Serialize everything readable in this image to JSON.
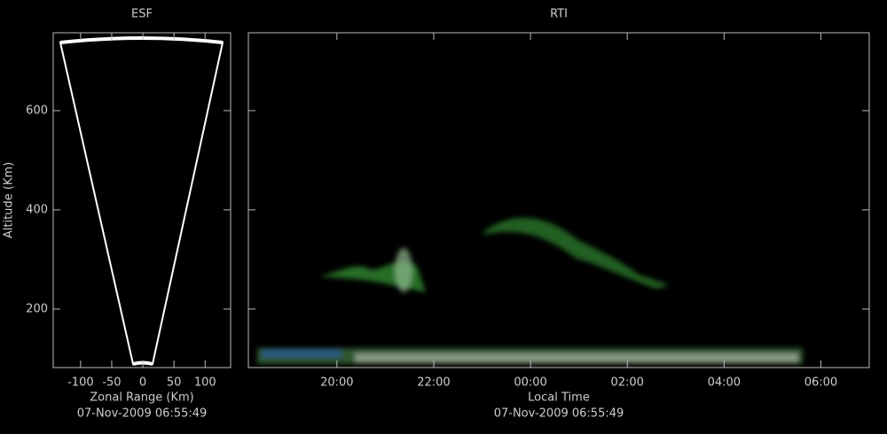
{
  "chart_data": [
    {
      "type": "fan",
      "title": "ESF",
      "x_label": "Zonal Range (Km)",
      "y_label": "Altitude (Km)",
      "timestamp": "07-Nov-2009 06:55:49",
      "xlim": [
        -144,
        141
      ],
      "ylim": [
        82,
        757
      ],
      "xticks": [
        -100,
        -50,
        0,
        50,
        100
      ],
      "yticks": [
        200,
        400,
        600
      ]
    },
    {
      "type": "rti",
      "title": "RTI",
      "x_label": "Local Time",
      "timestamp": "07-Nov-2009 06:55:49",
      "xlim": [
        18.17,
        31.0
      ],
      "ylim": [
        82,
        757
      ],
      "xticks": [
        {
          "value": 20,
          "label": "20:00"
        },
        {
          "value": 22,
          "label": "22:00"
        },
        {
          "value": 24,
          "label": "00:00"
        },
        {
          "value": 26,
          "label": "02:00"
        },
        {
          "value": 28,
          "label": "04:00"
        },
        {
          "value": 30,
          "label": "06:00"
        }
      ],
      "yticks": [
        200,
        400,
        600
      ]
    }
  ]
}
